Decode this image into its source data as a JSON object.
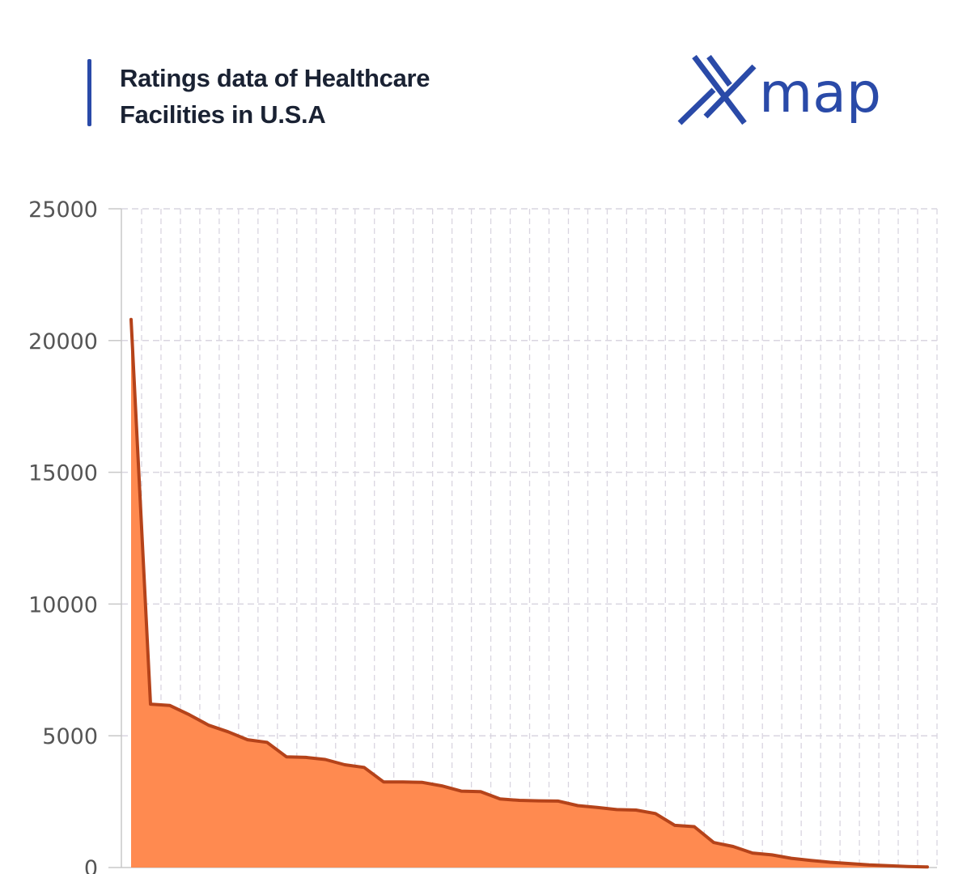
{
  "header": {
    "title_line1": "Ratings data of Healthcare",
    "title_line2": "Facilities in U.S.A"
  },
  "logo": {
    "icon": "x-logo-icon",
    "text": "map"
  },
  "colors": {
    "title_text": "#1a2233",
    "title_bar": "#2a4aa8",
    "logo": "#2a4aa8",
    "area_fill": "#ff8a50",
    "area_line": "#b5431a",
    "grid": "#d9d5e0",
    "axis": "#c8c8c8",
    "tick_text": "#555555"
  },
  "chart_data": {
    "type": "area",
    "title": "Ratings data of Healthcare Facilities in U.S.A",
    "xlabel": "",
    "ylabel": "",
    "ylim": [
      0,
      25000
    ],
    "yticks": [
      0,
      5000,
      10000,
      15000,
      20000,
      25000
    ],
    "grid": true,
    "values": [
      20800,
      6200,
      6150,
      5800,
      5400,
      5150,
      4850,
      4750,
      4200,
      4180,
      4100,
      3900,
      3800,
      3250,
      3250,
      3230,
      3100,
      2900,
      2880,
      2600,
      2550,
      2530,
      2520,
      2350,
      2280,
      2200,
      2180,
      2050,
      1600,
      1550,
      950,
      800,
      550,
      480,
      350,
      270,
      200,
      150,
      100,
      70,
      40,
      20
    ]
  }
}
